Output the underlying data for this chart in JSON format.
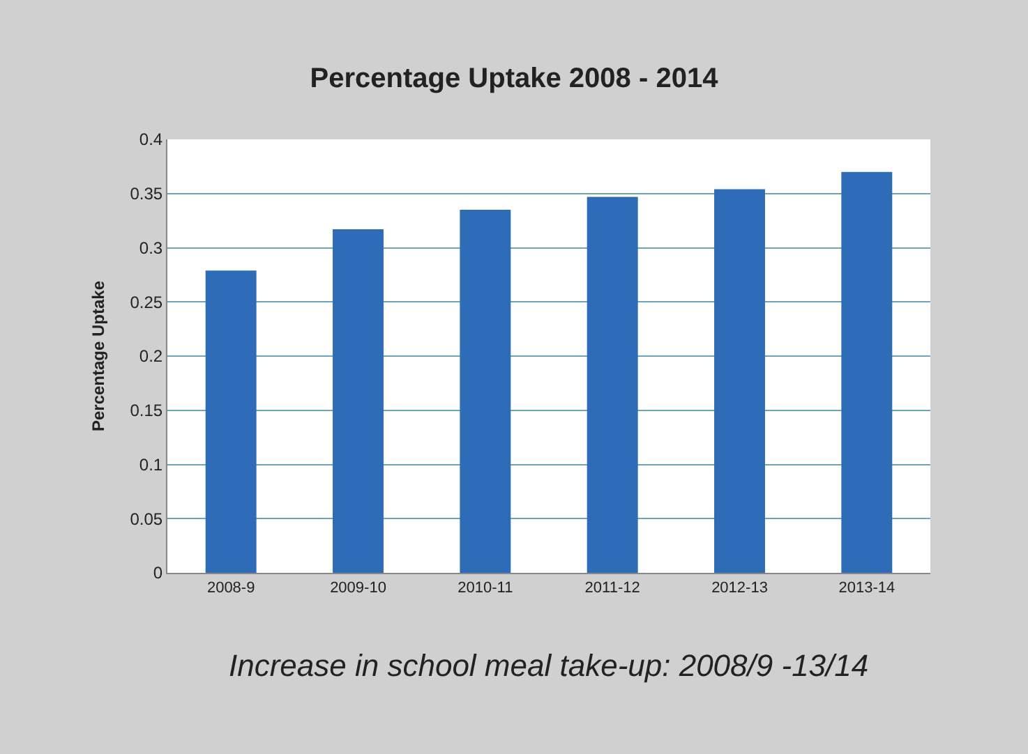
{
  "chart_data": {
    "type": "bar",
    "title": "Percentage Uptake 2008 - 2014",
    "ylabel": "Percentage Uptake",
    "categories": [
      "2008-9",
      "2009-10",
      "2010-11",
      "2011-12",
      "2012-13",
      "2013-14"
    ],
    "values": [
      0.279,
      0.317,
      0.335,
      0.347,
      0.354,
      0.37
    ],
    "color": "#2e6cb8",
    "ylim": [
      0,
      0.4
    ],
    "yticks": [
      0,
      0.05,
      0.1,
      0.15,
      0.2,
      0.25,
      0.3,
      0.35,
      0.4
    ],
    "grid": "y",
    "annotations": [
      "Increase in school meal take-up: 2008/9 -13/14"
    ]
  }
}
